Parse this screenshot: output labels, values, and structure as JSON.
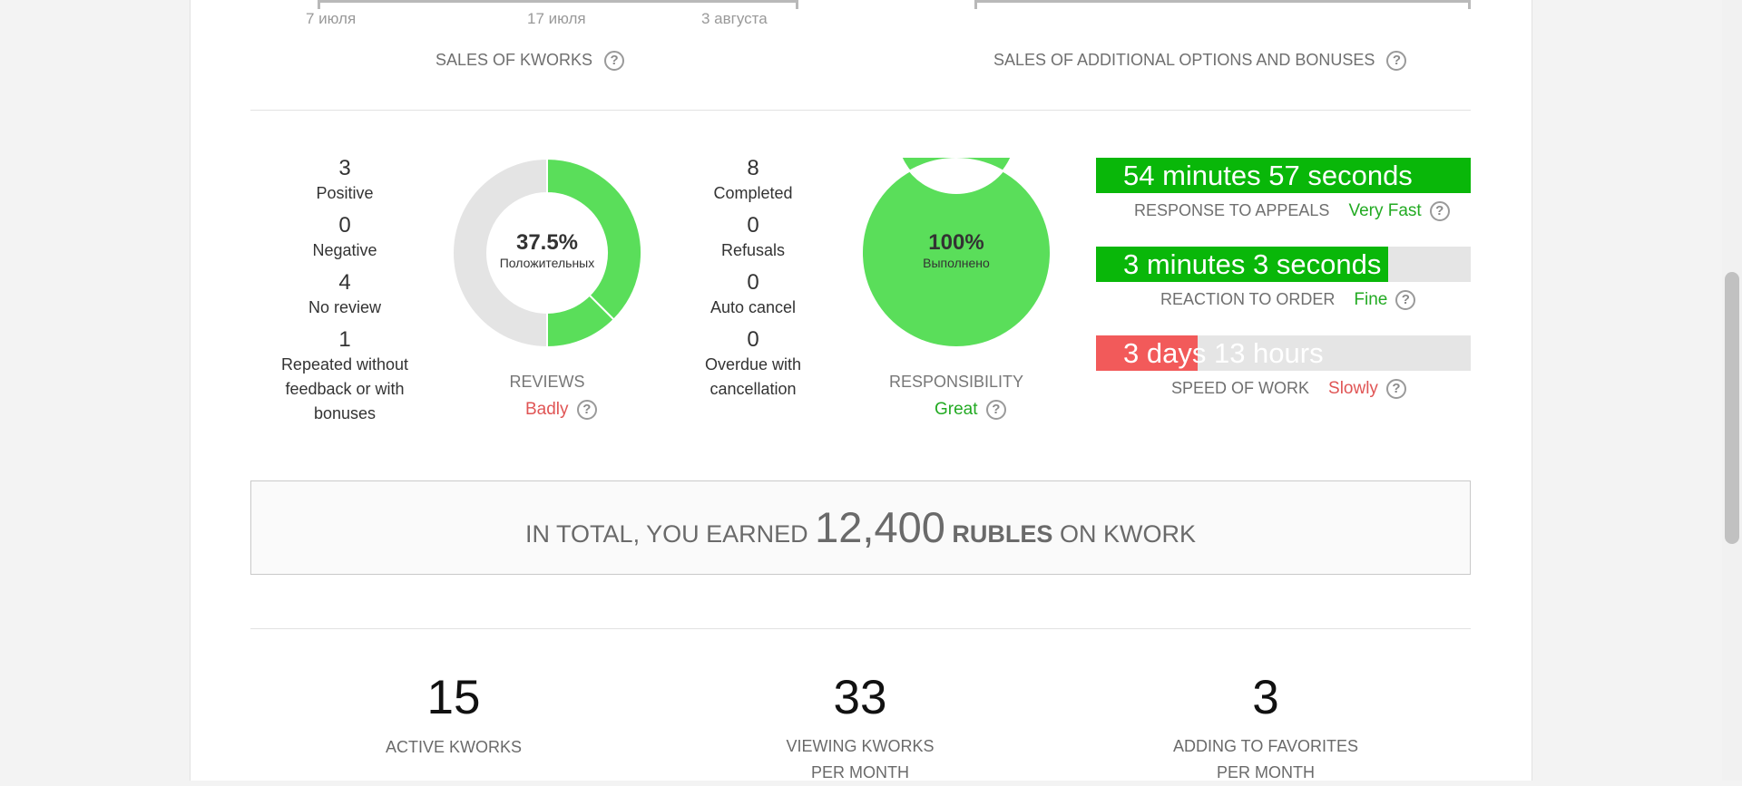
{
  "top_charts": {
    "left_ticks": [
      "7 июля",
      "17 июля",
      "3 августа"
    ],
    "left_title": "SALES OF KWORKS",
    "right_title": "SALES OF ADDITIONAL OPTIONS AND BONUSES"
  },
  "reviews": {
    "stats": [
      {
        "value": "3",
        "label": "Positive"
      },
      {
        "value": "0",
        "label": "Negative"
      },
      {
        "value": "4",
        "label": "No review"
      },
      {
        "value": "1",
        "label": "Repeated without feedback or with bonuses"
      }
    ],
    "donut": {
      "percent_text": "37.5%",
      "sub": "Положительных",
      "segments": [
        3,
        1,
        4
      ],
      "colors": [
        "#5ade5a",
        "#5ade5a",
        "#e4e4e4"
      ]
    },
    "caption": "REVIEWS",
    "rating": "Badly",
    "rating_color": "#e05555"
  },
  "responsibility": {
    "stats": [
      {
        "value": "8",
        "label": "Completed"
      },
      {
        "value": "0",
        "label": "Refusals"
      },
      {
        "value": "0",
        "label": "Auto cancel"
      },
      {
        "value": "0",
        "label": "Overdue with cancellation"
      }
    ],
    "donut": {
      "percent_text": "100%",
      "sub": "Выполнено",
      "segments": [
        8
      ],
      "colors": [
        "#5ade5a"
      ]
    },
    "caption": "RESPONSIBILITY",
    "rating": "Great",
    "rating_color": "#22aa22"
  },
  "metrics": [
    {
      "bar_text": "54 minutes 57 seconds",
      "fill": 1.0,
      "color": "#09b709",
      "caption": "RESPONSE TO APPEALS",
      "rating": "Very Fast",
      "rating_color": "#22aa22"
    },
    {
      "bar_text": "3 minutes 3 seconds",
      "fill": 0.78,
      "color": "#09b709",
      "caption": "REACTION TO ORDER",
      "rating": "Fine",
      "rating_color": "#22aa22"
    },
    {
      "bar_text": "3 days 13 hours",
      "fill": 0.27,
      "color": "#f25a5a",
      "caption": "SPEED OF WORK",
      "rating": "Slowly",
      "rating_color": "#e05555"
    }
  ],
  "total": {
    "prefix": "IN TOTAL, YOU EARNED",
    "amount": "12,400",
    "currency": "RUBLES",
    "suffix": "ON KWORK"
  },
  "kpis": [
    {
      "value": "15",
      "label": "ACTIVE KWORKS"
    },
    {
      "value": "33",
      "label": "VIEWING KWORKS PER MONTH"
    },
    {
      "value": "3",
      "label": "ADDING TO FAVORITES PER MONTH"
    }
  ],
  "help_icon": "?"
}
